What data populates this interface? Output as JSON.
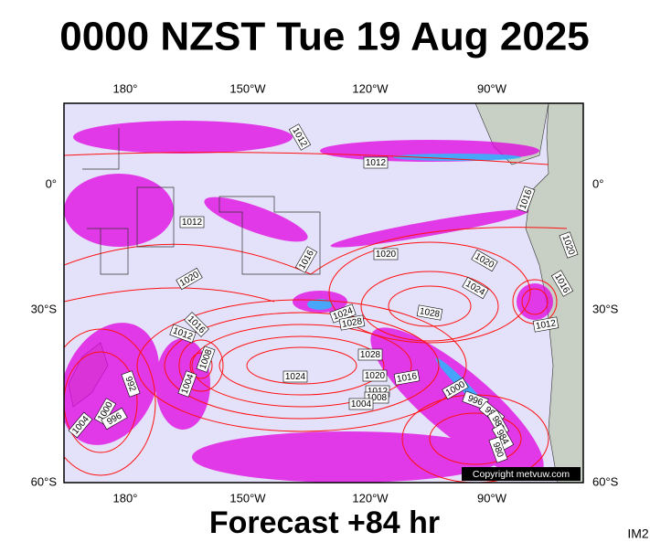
{
  "title": "0000 NZST Tue 19 Aug 2025",
  "footer": "Forecast +84 hr",
  "corner_label": "IM2",
  "copyright": "Copyright metvuw.com",
  "lon_labels": [
    "180°",
    "150°W",
    "120°W",
    "90°W"
  ],
  "lat_labels": [
    "0°",
    "30°S",
    "60°S"
  ],
  "isobar_labels": [
    "1012",
    "1012",
    "1016",
    "1012",
    "1020",
    "1016",
    "1020",
    "1020",
    "1024",
    "1020",
    "1016",
    "1028",
    "1024",
    "1028",
    "1012",
    "1016",
    "1012",
    "1008",
    "1004",
    "992",
    "1028",
    "1024",
    "1020",
    "1016",
    "1000",
    "1012",
    "1008",
    "1004",
    "996",
    "992",
    "988",
    "984",
    "980",
    "1000",
    "996",
    "1004"
  ]
}
